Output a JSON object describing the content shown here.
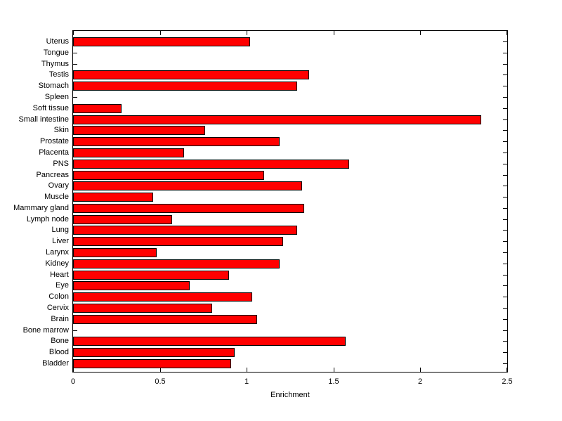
{
  "figure": {
    "background": "#ffffff"
  },
  "chart_data": {
    "type": "bar",
    "orientation": "horizontal",
    "title": "",
    "xlabel": "Enrichment",
    "ylabel": "",
    "xlim": [
      0,
      2.5
    ],
    "xticks": [
      0,
      0.5,
      1,
      1.5,
      2,
      2.5
    ],
    "xtick_labels": [
      "0",
      "0.5",
      "1",
      "1.5",
      "2",
      "2.5"
    ],
    "grid": false,
    "legend": null,
    "bar_color": "#ff0000",
    "bar_edge_color": "#000000",
    "axis_color": "#000000",
    "categories": [
      "Uterus",
      "Tongue",
      "Thymus",
      "Testis",
      "Stomach",
      "Spleen",
      "Soft tissue",
      "Small intestine",
      "Skin",
      "Prostate",
      "Placenta",
      "PNS",
      "Pancreas",
      "Ovary",
      "Muscle",
      "Mammary gland",
      "Lymph node",
      "Lung",
      "Liver",
      "Larynx",
      "Kidney",
      "Heart",
      "Eye",
      "Colon",
      "Cervix",
      "Brain",
      "Bone marrow",
      "Bone",
      "Blood",
      "Bladder"
    ],
    "values": [
      1.02,
      0,
      0,
      1.36,
      1.29,
      0,
      0.28,
      2.35,
      0.76,
      1.19,
      0.64,
      1.59,
      1.1,
      1.32,
      0.46,
      1.33,
      0.57,
      1.29,
      1.21,
      0.48,
      1.19,
      0.9,
      0.67,
      1.03,
      0.8,
      1.06,
      0,
      1.57,
      0.93,
      0.91
    ]
  }
}
